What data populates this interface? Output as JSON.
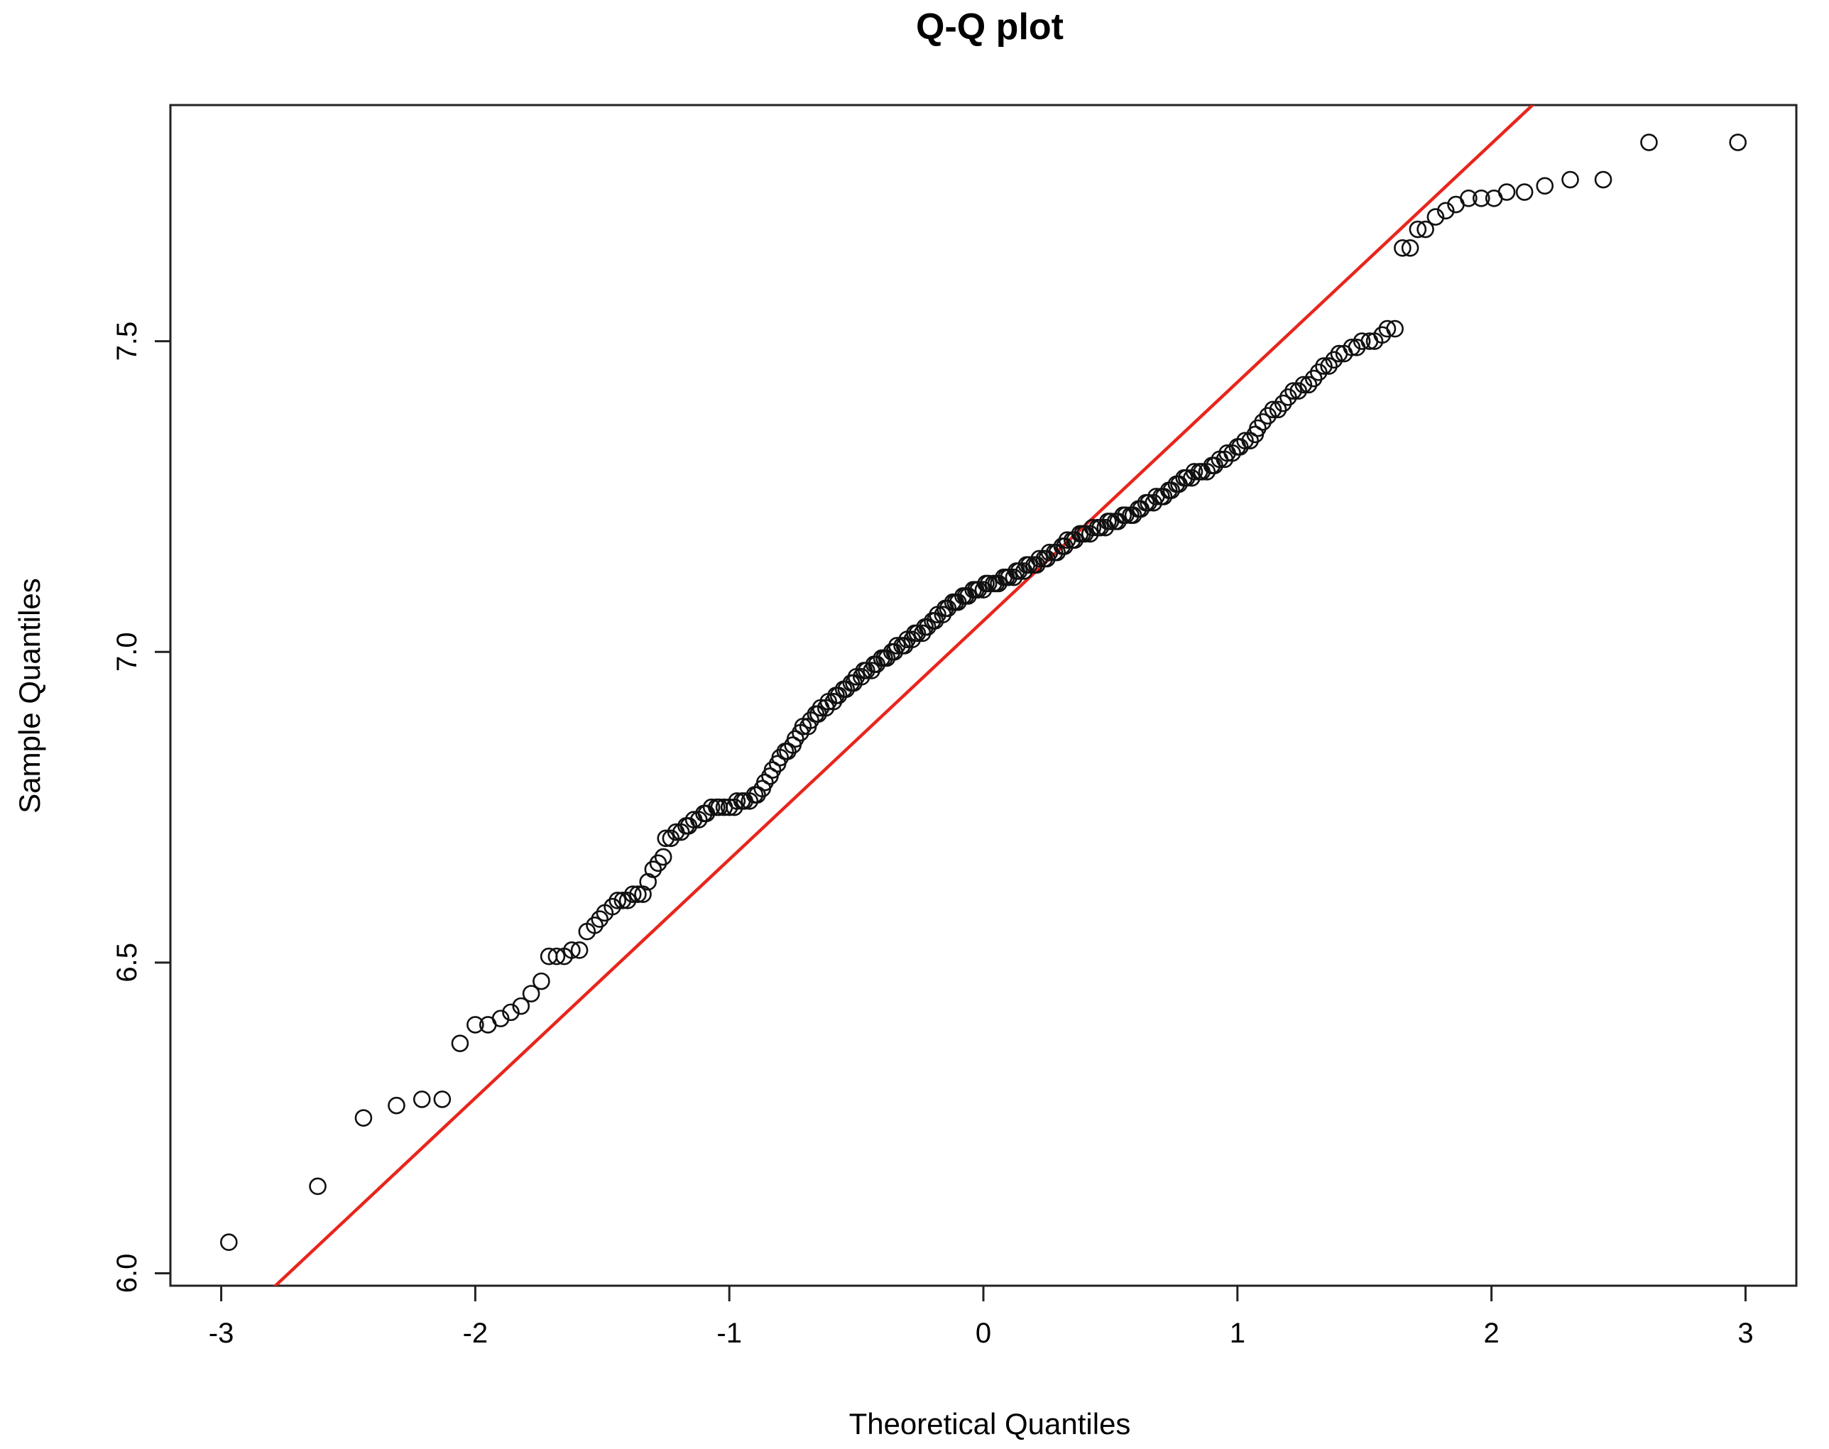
{
  "chart_data": {
    "type": "scatter",
    "title": "Q-Q plot",
    "xlabel": "Theoretical Quantiles",
    "ylabel": "Sample Quantiles",
    "xlim": [
      -3.2,
      3.2
    ],
    "ylim": [
      5.98,
      7.88
    ],
    "x_ticks": [
      -3,
      -2,
      -1,
      0,
      1,
      2,
      3
    ],
    "x_tick_labels": [
      "-3",
      "-2",
      "-1",
      "0",
      "1",
      "2",
      "3"
    ],
    "y_ticks": [
      6.0,
      6.5,
      7.0,
      7.5
    ],
    "y_tick_labels": [
      "6.0",
      "6.5",
      "7.0",
      "7.5"
    ],
    "grid": false,
    "legend": "none",
    "colors": {
      "points": "#111111",
      "reference_line": "#e8251d",
      "frame": "#222222"
    },
    "reference_line": {
      "slope": 0.384,
      "intercept": 7.05,
      "color": "#e8251d"
    },
    "points": [
      [
        -2.97,
        6.05
      ],
      [
        -2.62,
        6.14
      ],
      [
        -2.44,
        6.25
      ],
      [
        -2.31,
        6.27
      ],
      [
        -2.21,
        6.28
      ],
      [
        -2.13,
        6.28
      ],
      [
        -2.06,
        6.37
      ],
      [
        -2.0,
        6.4
      ],
      [
        -1.95,
        6.4
      ],
      [
        -1.9,
        6.41
      ],
      [
        -1.86,
        6.42
      ],
      [
        -1.82,
        6.43
      ],
      [
        -1.78,
        6.45
      ],
      [
        -1.74,
        6.47
      ],
      [
        -1.71,
        6.51
      ],
      [
        -1.68,
        6.51
      ],
      [
        -1.65,
        6.51
      ],
      [
        -1.62,
        6.52
      ],
      [
        -1.59,
        6.52
      ],
      [
        -1.56,
        6.55
      ],
      [
        -1.53,
        6.56
      ],
      [
        -1.51,
        6.57
      ],
      [
        -1.49,
        6.58
      ],
      [
        -1.46,
        6.59
      ],
      [
        -1.44,
        6.6
      ],
      [
        -1.42,
        6.6
      ],
      [
        -1.4,
        6.6
      ],
      [
        -1.38,
        6.61
      ],
      [
        -1.36,
        6.61
      ],
      [
        -1.34,
        6.61
      ],
      [
        -1.32,
        6.63
      ],
      [
        -1.3,
        6.65
      ],
      [
        -1.28,
        6.66
      ],
      [
        -1.26,
        6.67
      ],
      [
        -1.25,
        6.7
      ],
      [
        -1.23,
        6.7
      ],
      [
        -1.21,
        6.71
      ],
      [
        -1.19,
        6.71
      ],
      [
        -1.17,
        6.72
      ],
      [
        -1.16,
        6.72
      ],
      [
        -1.14,
        6.73
      ],
      [
        -1.12,
        6.73
      ],
      [
        -1.1,
        6.74
      ],
      [
        -1.09,
        6.74
      ],
      [
        -1.07,
        6.75
      ],
      [
        -1.05,
        6.75
      ],
      [
        -1.04,
        6.75
      ],
      [
        -1.02,
        6.75
      ],
      [
        -1.0,
        6.75
      ],
      [
        -0.98,
        6.75
      ],
      [
        -0.97,
        6.76
      ],
      [
        -0.95,
        6.76
      ],
      [
        -0.94,
        6.76
      ],
      [
        -0.92,
        6.76
      ],
      [
        -0.9,
        6.77
      ],
      [
        -0.89,
        6.77
      ],
      [
        -0.87,
        6.78
      ],
      [
        -0.86,
        6.79
      ],
      [
        -0.84,
        6.8
      ],
      [
        -0.83,
        6.81
      ],
      [
        -0.81,
        6.82
      ],
      [
        -0.8,
        6.83
      ],
      [
        -0.78,
        6.84
      ],
      [
        -0.77,
        6.84
      ],
      [
        -0.75,
        6.85
      ],
      [
        -0.74,
        6.86
      ],
      [
        -0.72,
        6.87
      ],
      [
        -0.71,
        6.88
      ],
      [
        -0.69,
        6.88
      ],
      [
        -0.68,
        6.89
      ],
      [
        -0.66,
        6.9
      ],
      [
        -0.65,
        6.9
      ],
      [
        -0.64,
        6.91
      ],
      [
        -0.62,
        6.91
      ],
      [
        -0.61,
        6.92
      ],
      [
        -0.59,
        6.92
      ],
      [
        -0.58,
        6.93
      ],
      [
        -0.57,
        6.93
      ],
      [
        -0.55,
        6.94
      ],
      [
        -0.54,
        6.94
      ],
      [
        -0.52,
        6.95
      ],
      [
        -0.51,
        6.95
      ],
      [
        -0.5,
        6.96
      ],
      [
        -0.48,
        6.96
      ],
      [
        -0.47,
        6.97
      ],
      [
        -0.46,
        6.97
      ],
      [
        -0.44,
        6.97
      ],
      [
        -0.43,
        6.98
      ],
      [
        -0.42,
        6.98
      ],
      [
        -0.4,
        6.99
      ],
      [
        -0.39,
        6.99
      ],
      [
        -0.38,
        6.99
      ],
      [
        -0.36,
        7.0
      ],
      [
        -0.35,
        7.0
      ],
      [
        -0.34,
        7.01
      ],
      [
        -0.32,
        7.01
      ],
      [
        -0.31,
        7.01
      ],
      [
        -0.3,
        7.02
      ],
      [
        -0.28,
        7.02
      ],
      [
        -0.27,
        7.03
      ],
      [
        -0.26,
        7.03
      ],
      [
        -0.24,
        7.03
      ],
      [
        -0.23,
        7.04
      ],
      [
        -0.22,
        7.04
      ],
      [
        -0.2,
        7.05
      ],
      [
        -0.19,
        7.05
      ],
      [
        -0.18,
        7.06
      ],
      [
        -0.16,
        7.06
      ],
      [
        -0.15,
        7.07
      ],
      [
        -0.14,
        7.07
      ],
      [
        -0.12,
        7.08
      ],
      [
        -0.11,
        7.08
      ],
      [
        -0.1,
        7.08
      ],
      [
        -0.08,
        7.09
      ],
      [
        -0.07,
        7.09
      ],
      [
        -0.06,
        7.09
      ],
      [
        -0.04,
        7.1
      ],
      [
        -0.03,
        7.1
      ],
      [
        -0.02,
        7.1
      ],
      [
        0.0,
        7.1
      ],
      [
        0.01,
        7.11
      ],
      [
        0.02,
        7.11
      ],
      [
        0.04,
        7.11
      ],
      [
        0.05,
        7.11
      ],
      [
        0.06,
        7.11
      ],
      [
        0.08,
        7.12
      ],
      [
        0.09,
        7.12
      ],
      [
        0.1,
        7.12
      ],
      [
        0.12,
        7.12
      ],
      [
        0.13,
        7.13
      ],
      [
        0.14,
        7.13
      ],
      [
        0.16,
        7.13
      ],
      [
        0.17,
        7.14
      ],
      [
        0.18,
        7.14
      ],
      [
        0.2,
        7.14
      ],
      [
        0.21,
        7.14
      ],
      [
        0.22,
        7.15
      ],
      [
        0.24,
        7.15
      ],
      [
        0.25,
        7.15
      ],
      [
        0.26,
        7.16
      ],
      [
        0.28,
        7.16
      ],
      [
        0.29,
        7.16
      ],
      [
        0.31,
        7.17
      ],
      [
        0.32,
        7.17
      ],
      [
        0.33,
        7.18
      ],
      [
        0.35,
        7.18
      ],
      [
        0.36,
        7.18
      ],
      [
        0.38,
        7.19
      ],
      [
        0.39,
        7.19
      ],
      [
        0.4,
        7.19
      ],
      [
        0.42,
        7.19
      ],
      [
        0.43,
        7.2
      ],
      [
        0.45,
        7.2
      ],
      [
        0.46,
        7.2
      ],
      [
        0.48,
        7.2
      ],
      [
        0.49,
        7.21
      ],
      [
        0.5,
        7.21
      ],
      [
        0.52,
        7.21
      ],
      [
        0.53,
        7.21
      ],
      [
        0.55,
        7.22
      ],
      [
        0.56,
        7.22
      ],
      [
        0.58,
        7.22
      ],
      [
        0.59,
        7.22
      ],
      [
        0.61,
        7.23
      ],
      [
        0.62,
        7.23
      ],
      [
        0.64,
        7.24
      ],
      [
        0.65,
        7.24
      ],
      [
        0.67,
        7.24
      ],
      [
        0.68,
        7.25
      ],
      [
        0.7,
        7.25
      ],
      [
        0.71,
        7.25
      ],
      [
        0.73,
        7.26
      ],
      [
        0.74,
        7.26
      ],
      [
        0.76,
        7.27
      ],
      [
        0.77,
        7.27
      ],
      [
        0.79,
        7.28
      ],
      [
        0.8,
        7.28
      ],
      [
        0.82,
        7.28
      ],
      [
        0.83,
        7.29
      ],
      [
        0.85,
        7.29
      ],
      [
        0.86,
        7.29
      ],
      [
        0.88,
        7.29
      ],
      [
        0.9,
        7.3
      ],
      [
        0.91,
        7.3
      ],
      [
        0.93,
        7.31
      ],
      [
        0.95,
        7.31
      ],
      [
        0.96,
        7.32
      ],
      [
        0.98,
        7.32
      ],
      [
        1.0,
        7.33
      ],
      [
        1.01,
        7.33
      ],
      [
        1.03,
        7.34
      ],
      [
        1.05,
        7.34
      ],
      [
        1.07,
        7.35
      ],
      [
        1.08,
        7.36
      ],
      [
        1.1,
        7.37
      ],
      [
        1.12,
        7.38
      ],
      [
        1.14,
        7.39
      ],
      [
        1.16,
        7.39
      ],
      [
        1.18,
        7.4
      ],
      [
        1.2,
        7.41
      ],
      [
        1.22,
        7.42
      ],
      [
        1.24,
        7.42
      ],
      [
        1.26,
        7.43
      ],
      [
        1.28,
        7.43
      ],
      [
        1.3,
        7.44
      ],
      [
        1.32,
        7.45
      ],
      [
        1.34,
        7.46
      ],
      [
        1.36,
        7.46
      ],
      [
        1.38,
        7.47
      ],
      [
        1.4,
        7.48
      ],
      [
        1.42,
        7.48
      ],
      [
        1.45,
        7.49
      ],
      [
        1.47,
        7.49
      ],
      [
        1.49,
        7.5
      ],
      [
        1.52,
        7.5
      ],
      [
        1.54,
        7.5
      ],
      [
        1.57,
        7.51
      ],
      [
        1.59,
        7.52
      ],
      [
        1.62,
        7.52
      ],
      [
        1.65,
        7.65
      ],
      [
        1.68,
        7.65
      ],
      [
        1.71,
        7.68
      ],
      [
        1.74,
        7.68
      ],
      [
        1.78,
        7.7
      ],
      [
        1.82,
        7.71
      ],
      [
        1.86,
        7.72
      ],
      [
        1.91,
        7.73
      ],
      [
        1.96,
        7.73
      ],
      [
        2.01,
        7.73
      ],
      [
        2.06,
        7.74
      ],
      [
        2.13,
        7.74
      ],
      [
        2.21,
        7.75
      ],
      [
        2.31,
        7.76
      ],
      [
        2.44,
        7.76
      ],
      [
        2.62,
        7.82
      ],
      [
        2.97,
        7.82
      ]
    ]
  }
}
